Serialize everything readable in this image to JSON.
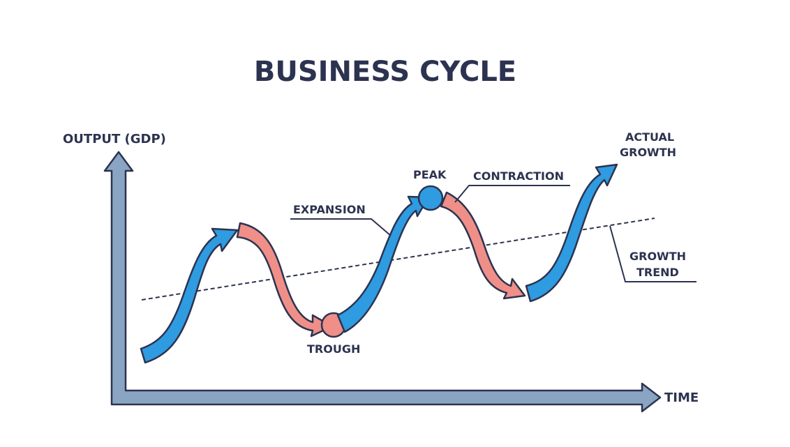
{
  "title": "BUSINESS CYCLE",
  "axes": {
    "y_label": "OUTPUT (GDP)",
    "x_label": "TIME"
  },
  "labels": {
    "expansion": "EXPANSION",
    "peak": "PEAK",
    "contraction": "CONTRACTION",
    "trough": "TROUGH",
    "actual_growth_line1": "ACTUAL",
    "actual_growth_line2": "GROWTH",
    "growth_trend_line1": "GROWTH",
    "growth_trend_line2": "TREND"
  },
  "colors": {
    "expansion": "#2f9be0",
    "contraction": "#ef8f88",
    "axis": "#8aa5c4",
    "outline": "#2c3350"
  }
}
